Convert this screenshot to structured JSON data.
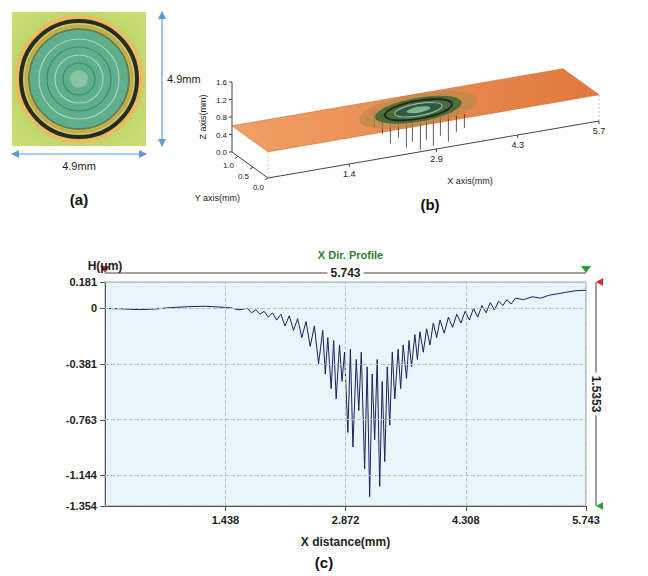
{
  "chart_data": [
    {
      "type": "image",
      "label": "(a)",
      "width_label": "4.9mm",
      "height_label": "4.9mm"
    },
    {
      "type": "surface",
      "label": "(b)",
      "x_label": "X axis(mm)",
      "y_label": "Y axis(mm)",
      "z_label": "Z axis(mm)",
      "xlim": [
        0,
        5.7
      ],
      "ylim": [
        0,
        1.2
      ],
      "zlim": [
        0,
        1.6
      ],
      "xticks": [
        1.4,
        2.9,
        4.3,
        5.7
      ],
      "yticks": [
        {
          "value": 0,
          "label": "0.0"
        },
        0.5,
        {
          "value": 1,
          "label": "1.0"
        }
      ],
      "zticks": [
        {
          "value": 0,
          "label": "0.0"
        },
        0.4,
        0.8,
        1.2,
        1.6
      ]
    },
    {
      "type": "line",
      "label": "(c)",
      "title": "X Dir. Profile",
      "x_label": "X distance(mm)",
      "y_label": "H(μm)",
      "xlim": [
        0,
        5.743
      ],
      "ylim": [
        -1.354,
        0.181
      ],
      "xticks": [
        1.438,
        2.872,
        4.308,
        5.743
      ],
      "yticks": [
        -1.354,
        -1.144,
        -0.763,
        -0.381,
        0,
        0.181
      ],
      "grid": true,
      "color": "#1f1f5c",
      "x_span": 5.743,
      "y_span": 1.5353,
      "x": [
        0,
        0.2,
        0.4,
        0.6,
        0.8,
        1.0,
        1.2,
        1.35,
        1.5,
        1.6,
        1.7,
        1.75,
        1.8,
        1.85,
        1.9,
        1.95,
        2.0,
        2.05,
        2.1,
        2.15,
        2.2,
        2.25,
        2.3,
        2.35,
        2.4,
        2.45,
        2.5,
        2.55,
        2.6,
        2.63,
        2.66,
        2.7,
        2.73,
        2.76,
        2.8,
        2.83,
        2.86,
        2.9,
        2.93,
        2.96,
        3.0,
        3.03,
        3.06,
        3.1,
        3.13,
        3.16,
        3.19,
        3.22,
        3.25,
        3.28,
        3.31,
        3.34,
        3.37,
        3.4,
        3.43,
        3.46,
        3.5,
        3.53,
        3.56,
        3.6,
        3.63,
        3.66,
        3.7,
        3.73,
        3.76,
        3.8,
        3.84,
        3.88,
        3.92,
        3.96,
        4.0,
        4.05,
        4.1,
        4.15,
        4.2,
        4.25,
        4.3,
        4.35,
        4.4,
        4.45,
        4.5,
        4.55,
        4.6,
        4.65,
        4.7,
        4.75,
        4.8,
        4.85,
        4.9,
        5.0,
        5.1,
        5.2,
        5.3,
        5.4,
        5.5,
        5.6,
        5.743
      ],
      "values": [
        0,
        -0.003,
        -0.008,
        -0.004,
        0.006,
        0.012,
        0.015,
        0.01,
        0.004,
        -0.01,
        0,
        -0.03,
        -0.01,
        -0.04,
        -0.02,
        -0.06,
        -0.03,
        -0.08,
        -0.04,
        -0.12,
        -0.05,
        -0.15,
        -0.07,
        -0.2,
        -0.09,
        -0.26,
        -0.12,
        -0.38,
        -0.15,
        -0.45,
        -0.2,
        -0.55,
        -0.22,
        -0.62,
        -0.25,
        -0.5,
        -0.3,
        -0.85,
        -0.28,
        -0.95,
        -0.35,
        -0.7,
        -0.3,
        -1.1,
        -0.4,
        -1.29,
        -0.45,
        -0.9,
        -0.35,
        -1.22,
        -0.5,
        -1.05,
        -0.4,
        -0.8,
        -0.3,
        -0.62,
        -0.28,
        -0.55,
        -0.25,
        -0.48,
        -0.22,
        -0.4,
        -0.18,
        -0.35,
        -0.16,
        -0.3,
        -0.14,
        -0.25,
        -0.1,
        -0.2,
        -0.08,
        -0.17,
        -0.06,
        -0.13,
        -0.04,
        -0.1,
        -0.02,
        -0.08,
        0,
        -0.06,
        0.02,
        -0.03,
        0.04,
        -0.01,
        0.05,
        0.02,
        0.06,
        0.03,
        0.07,
        0.06,
        0.08,
        0.07,
        0.09,
        0.1,
        0.11,
        0.12,
        0.125
      ]
    }
  ]
}
